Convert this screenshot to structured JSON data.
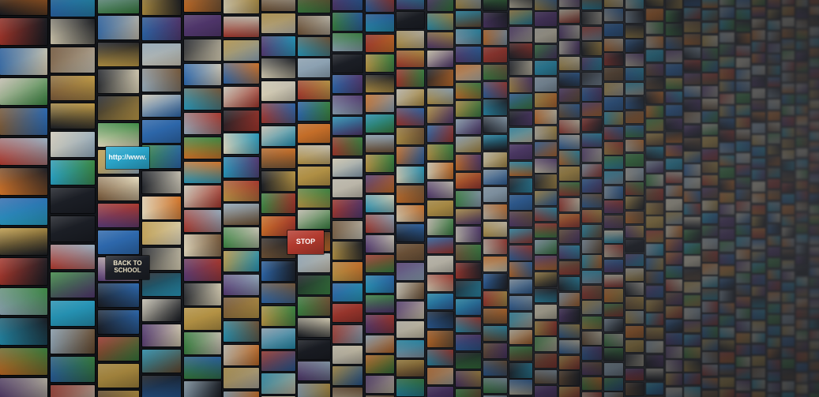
{
  "scene": {
    "subject": "video-wall-mosaic",
    "palette": [
      "#2f6db5",
      "#c8a24a",
      "#b23a2e",
      "#3f8f46",
      "#d9d3c2",
      "#1c1f26",
      "#e07b2a",
      "#7a5a3a",
      "#9fb7c9",
      "#5b3d7a",
      "#f0e6c8",
      "#2aa4c9"
    ],
    "tile_texts": [
      "http://www.",
      "BACK TO SCHOOL",
      "STOP"
    ]
  }
}
